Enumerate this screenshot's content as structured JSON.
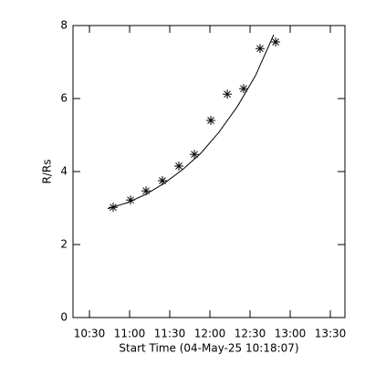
{
  "chart_data": {
    "type": "scatter",
    "x_label": "Start Time (04-May-25 10:18:07)",
    "y_label": "R/Rs",
    "xlim": [
      617.7,
      820.9
    ],
    "ylim": [
      0,
      8
    ],
    "xticks": [
      {
        "value": 630,
        "label": "10:30"
      },
      {
        "value": 660,
        "label": "11:00"
      },
      {
        "value": 690,
        "label": "11:30"
      },
      {
        "value": 720,
        "label": "12:00"
      },
      {
        "value": 750,
        "label": "12:30"
      },
      {
        "value": 780,
        "label": "13:00"
      },
      {
        "value": 810,
        "label": "13:30"
      }
    ],
    "yticks": [
      0,
      2,
      4,
      6,
      8
    ],
    "color": "#000000",
    "series": [
      {
        "x": [
          647.7,
          660.7,
          672.3,
          684.5,
          696.8,
          708.4,
          720.7,
          733.0,
          745.2,
          757.5,
          769.1
        ],
        "values": [
          3.02,
          3.22,
          3.47,
          3.75,
          4.15,
          4.47,
          5.4,
          6.12,
          6.27,
          7.37,
          7.55
        ]
      },
      {
        "x": [
          643.6,
          658.6,
          672.3,
          685.9,
          699.5,
          713.2,
          726.8,
          740.5,
          754.1,
          767.7
        ],
        "values": [
          2.98,
          3.15,
          3.38,
          3.68,
          4.05,
          4.5,
          5.08,
          5.78,
          6.63,
          7.75
        ]
      }
    ]
  }
}
